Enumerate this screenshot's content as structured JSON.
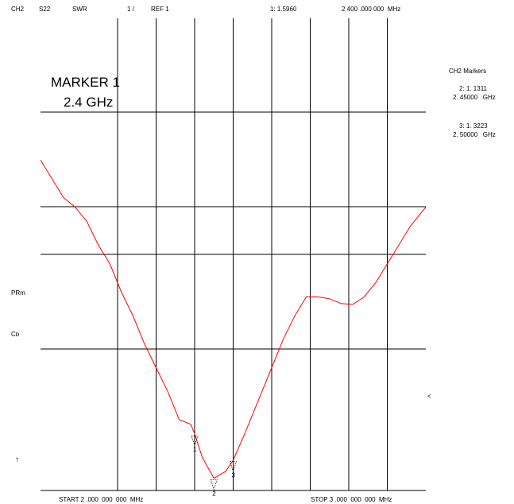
{
  "header": {
    "channel": "CH2",
    "param": "S22",
    "format": "SWR",
    "scale": "1 /",
    "ref": "REF 1",
    "marker_readout": "1: 1.5960",
    "marker_freq": "2 400 .000 000  MHz"
  },
  "annotation": {
    "line1": "MARKER 1",
    "line2": "2.4 GHz"
  },
  "marker_table": {
    "title": "CH2 Markers",
    "entries": [
      {
        "readout": "2: 1. 1311",
        "freq": "2. 45000   GHz"
      },
      {
        "readout": "3: 1. 3223",
        "freq": "2. 50000   GHz"
      }
    ]
  },
  "side_labels": {
    "prm": "PRm",
    "cor": "Cᴅ",
    "arrow_up": "↑",
    "ref_pointer": "<"
  },
  "footer": {
    "start": "START 2 .000  000  000  MHz",
    "stop": "STOP 3 .000  000  000  MHz"
  },
  "colors": {
    "trace": "#ff0000",
    "grid": "#000000",
    "background": "#ffffff"
  },
  "chart_data": {
    "type": "line",
    "title": "",
    "xlabel": "",
    "ylabel": "",
    "x_unit": "GHz",
    "xlim": [
      2.0,
      3.0
    ],
    "ylim": [
      1.0,
      6.0
    ],
    "grid": true,
    "series": [
      {
        "x": [
          2.0,
          2.03,
          2.06,
          2.09,
          2.12,
          2.15,
          2.18,
          2.21,
          2.24,
          2.27,
          2.3,
          2.33,
          2.36,
          2.39,
          2.4,
          2.42,
          2.45,
          2.48,
          2.5,
          2.53,
          2.56,
          2.6,
          2.63,
          2.66,
          2.69,
          2.72,
          2.75,
          2.78,
          2.81,
          2.84,
          2.87,
          2.9,
          2.93,
          2.96,
          3.0
        ],
        "y": [
          4.5,
          4.3,
          4.1,
          4.0,
          3.85,
          3.6,
          3.4,
          3.1,
          2.85,
          2.55,
          2.3,
          2.05,
          1.75,
          1.7,
          1.6,
          1.35,
          1.13,
          1.2,
          1.32,
          1.6,
          1.9,
          2.3,
          2.6,
          2.85,
          3.05,
          3.05,
          3.03,
          2.98,
          2.97,
          3.05,
          3.2,
          3.4,
          3.6,
          3.8,
          4.0
        ]
      }
    ],
    "markers": [
      {
        "id": "1",
        "x": 2.4,
        "y": 1.596
      },
      {
        "id": "2",
        "x": 2.45,
        "y": 1.1311
      },
      {
        "id": "3",
        "x": 2.5,
        "y": 1.3223
      }
    ]
  }
}
